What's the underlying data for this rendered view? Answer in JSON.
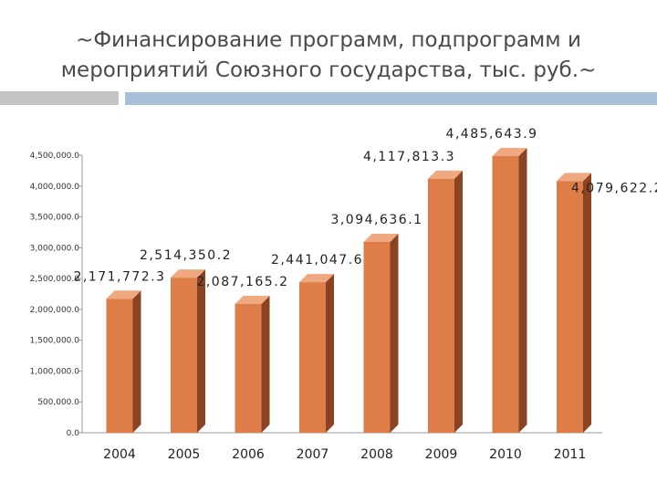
{
  "header": {
    "title": "~Финансирование программ, подпрограмм и мероприятий Союзного государства, тыс. руб.~"
  },
  "colors": {
    "bar_front": "#de7d47",
    "bar_side": "#8a4424",
    "bar_top": "#f0a880",
    "title_bar_grey": "#c4c4c4",
    "title_bar_blue": "#a7bfd9"
  },
  "chart_data": {
    "type": "bar",
    "categories": [
      "2004",
      "2005",
      "2006",
      "2007",
      "2008",
      "2009",
      "2010",
      "2011"
    ],
    "values": [
      2171772.3,
      2514350.2,
      2087165.2,
      2441047.6,
      3094636.1,
      4117813.3,
      4485643.9,
      4079622.2
    ],
    "data_labels": [
      "2,171,772.3",
      "2,514,350.2",
      "2,087,165.2",
      "2,441,047.6",
      "3,094,636.1",
      "4,117,813.3",
      "4,485,643.9",
      "4,079,622.2"
    ],
    "title": "~Финансирование программ, подпрограмм и мероприятий Союзного государства, тыс. руб.~",
    "xlabel": "",
    "ylabel": "",
    "ylim": [
      0,
      4500000
    ],
    "yticks": [
      0,
      500000,
      1000000,
      1500000,
      2000000,
      2500000,
      3000000,
      3500000,
      4000000,
      4500000
    ],
    "ytick_labels": [
      "0.0",
      "500,000.0",
      "1,000,000.0",
      "1,500,000.0",
      "2,000,000.0",
      "2,500,000.0",
      "3,000,000.0",
      "3,500,000.0",
      "4,000,000.0",
      "4,500,000.0"
    ],
    "grid": false,
    "legend": "none",
    "style": "3d-columns"
  }
}
